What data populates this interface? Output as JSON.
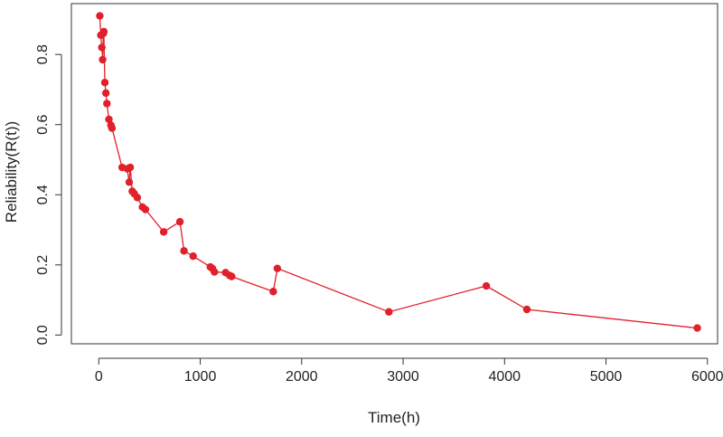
{
  "chart_data": {
    "type": "line",
    "title": "",
    "xlabel": "Time(h)",
    "ylabel": "Reliability(R(t))",
    "xlim": [
      -270,
      6100
    ],
    "ylim": [
      -0.025,
      0.945
    ],
    "xticks": [
      0,
      1000,
      2000,
      3000,
      4000,
      5000,
      6000
    ],
    "xtick_labels": [
      "0",
      "1000",
      "2000",
      "3000",
      "4000",
      "5000",
      "6000"
    ],
    "yticks": [
      0.0,
      0.2,
      0.4,
      0.6,
      0.8
    ],
    "ytick_labels": [
      "0.0",
      "0.2",
      "0.4",
      "0.6",
      "0.8"
    ],
    "grid": false,
    "legend": "none",
    "series": [
      {
        "color": "#e0202a",
        "marker": "filled-circle",
        "x": [
          10,
          20,
          30,
          38,
          45,
          50,
          60,
          70,
          80,
          100,
          120,
          130,
          230,
          280,
          300,
          310,
          330,
          350,
          380,
          430,
          460,
          640,
          800,
          840,
          930,
          1100,
          1120,
          1140,
          1250,
          1290,
          1310,
          1720,
          1760,
          2860,
          3820,
          4220,
          5900
        ],
        "y": [
          0.91,
          0.855,
          0.82,
          0.785,
          0.86,
          0.865,
          0.72,
          0.69,
          0.66,
          0.615,
          0.598,
          0.59,
          0.478,
          0.474,
          0.436,
          0.478,
          0.41,
          0.403,
          0.392,
          0.365,
          0.358,
          0.294,
          0.323,
          0.24,
          0.225,
          0.194,
          0.19,
          0.18,
          0.178,
          0.17,
          0.167,
          0.124,
          0.19,
          0.066,
          0.14,
          0.073,
          0.02
        ]
      }
    ]
  }
}
